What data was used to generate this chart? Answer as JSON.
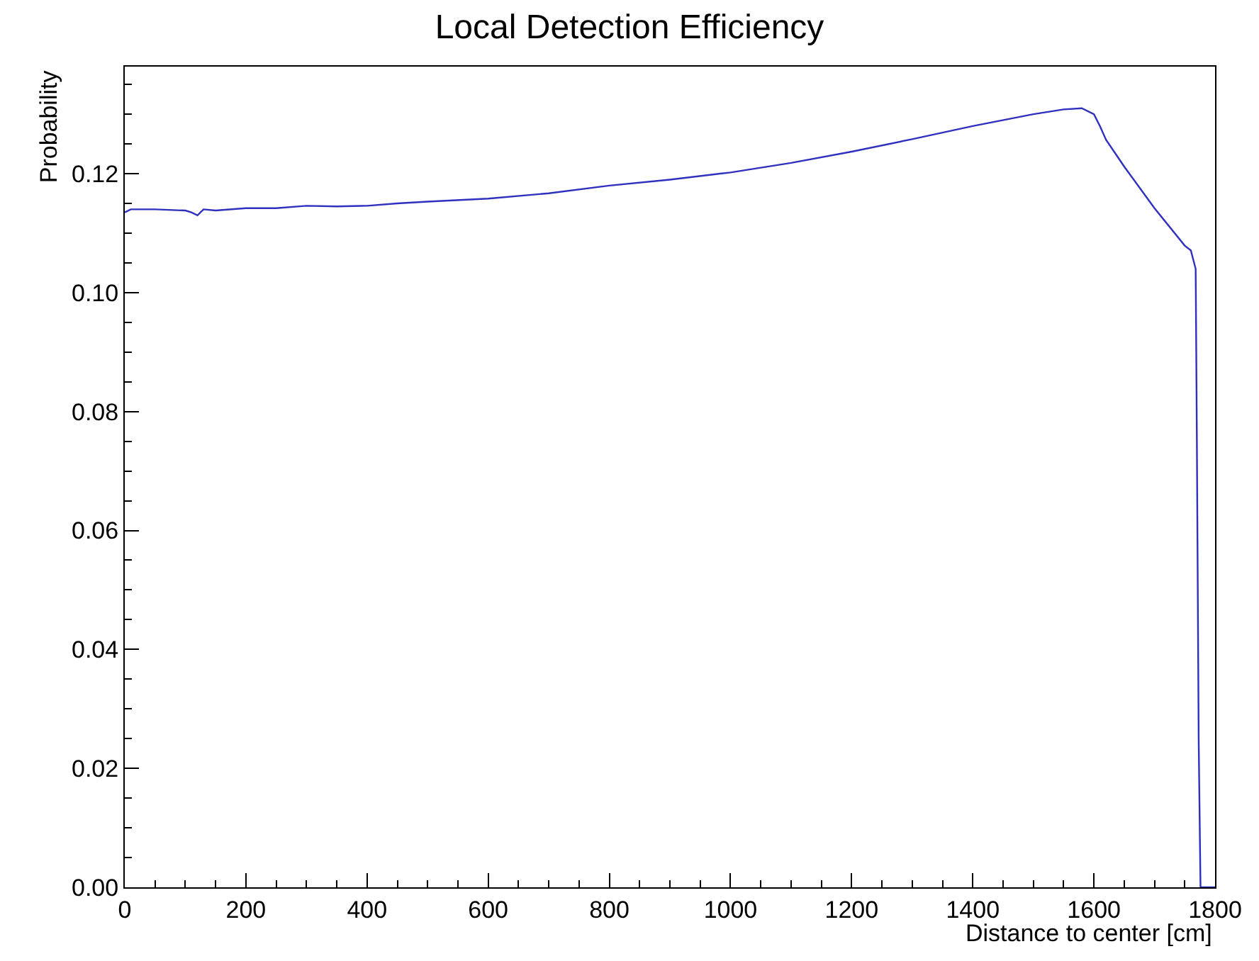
{
  "chart_data": {
    "type": "line",
    "title": "Local Detection Efficiency",
    "xlabel": "Distance to center [cm]",
    "ylabel": "Probability",
    "x": [
      0,
      10,
      50,
      100,
      110,
      120,
      130,
      150,
      200,
      250,
      300,
      350,
      400,
      450,
      500,
      600,
      700,
      800,
      900,
      1000,
      1100,
      1200,
      1300,
      1400,
      1500,
      1550,
      1580,
      1600,
      1610,
      1620,
      1650,
      1700,
      1750,
      1760,
      1768,
      1770,
      1773,
      1776,
      1800
    ],
    "series": [
      {
        "color": "#3030c0",
        "values": [
          0.1135,
          0.114,
          0.114,
          0.1138,
          0.1135,
          0.113,
          0.114,
          0.1138,
          0.1142,
          0.1142,
          0.1146,
          0.1145,
          0.1146,
          0.115,
          0.1153,
          0.1158,
          0.1167,
          0.118,
          0.119,
          0.1202,
          0.1218,
          0.1237,
          0.1258,
          0.128,
          0.13,
          0.1308,
          0.131,
          0.13,
          0.128,
          0.1257,
          0.1212,
          0.1142,
          0.1079,
          0.1071,
          0.104,
          0.0752,
          0.0245,
          0.0,
          0.0
        ]
      }
    ],
    "xlim": [
      0,
      1800
    ],
    "ylim": [
      0,
      0.138
    ],
    "xticks": [
      0,
      200,
      400,
      600,
      800,
      1000,
      1200,
      1400,
      1600,
      1800
    ],
    "yticks": [
      {
        "value": 0,
        "label": "0.00"
      },
      {
        "value": 0.02,
        "label": "0.02"
      },
      {
        "value": 0.04,
        "label": "0.04"
      },
      {
        "value": 0.06,
        "label": "0.06"
      },
      {
        "value": 0.08,
        "label": "0.08"
      },
      {
        "value": 0.1,
        "label": "0.10"
      },
      {
        "value": 0.12,
        "label": "0.12"
      }
    ],
    "marker": "none",
    "line_style": "solid"
  }
}
